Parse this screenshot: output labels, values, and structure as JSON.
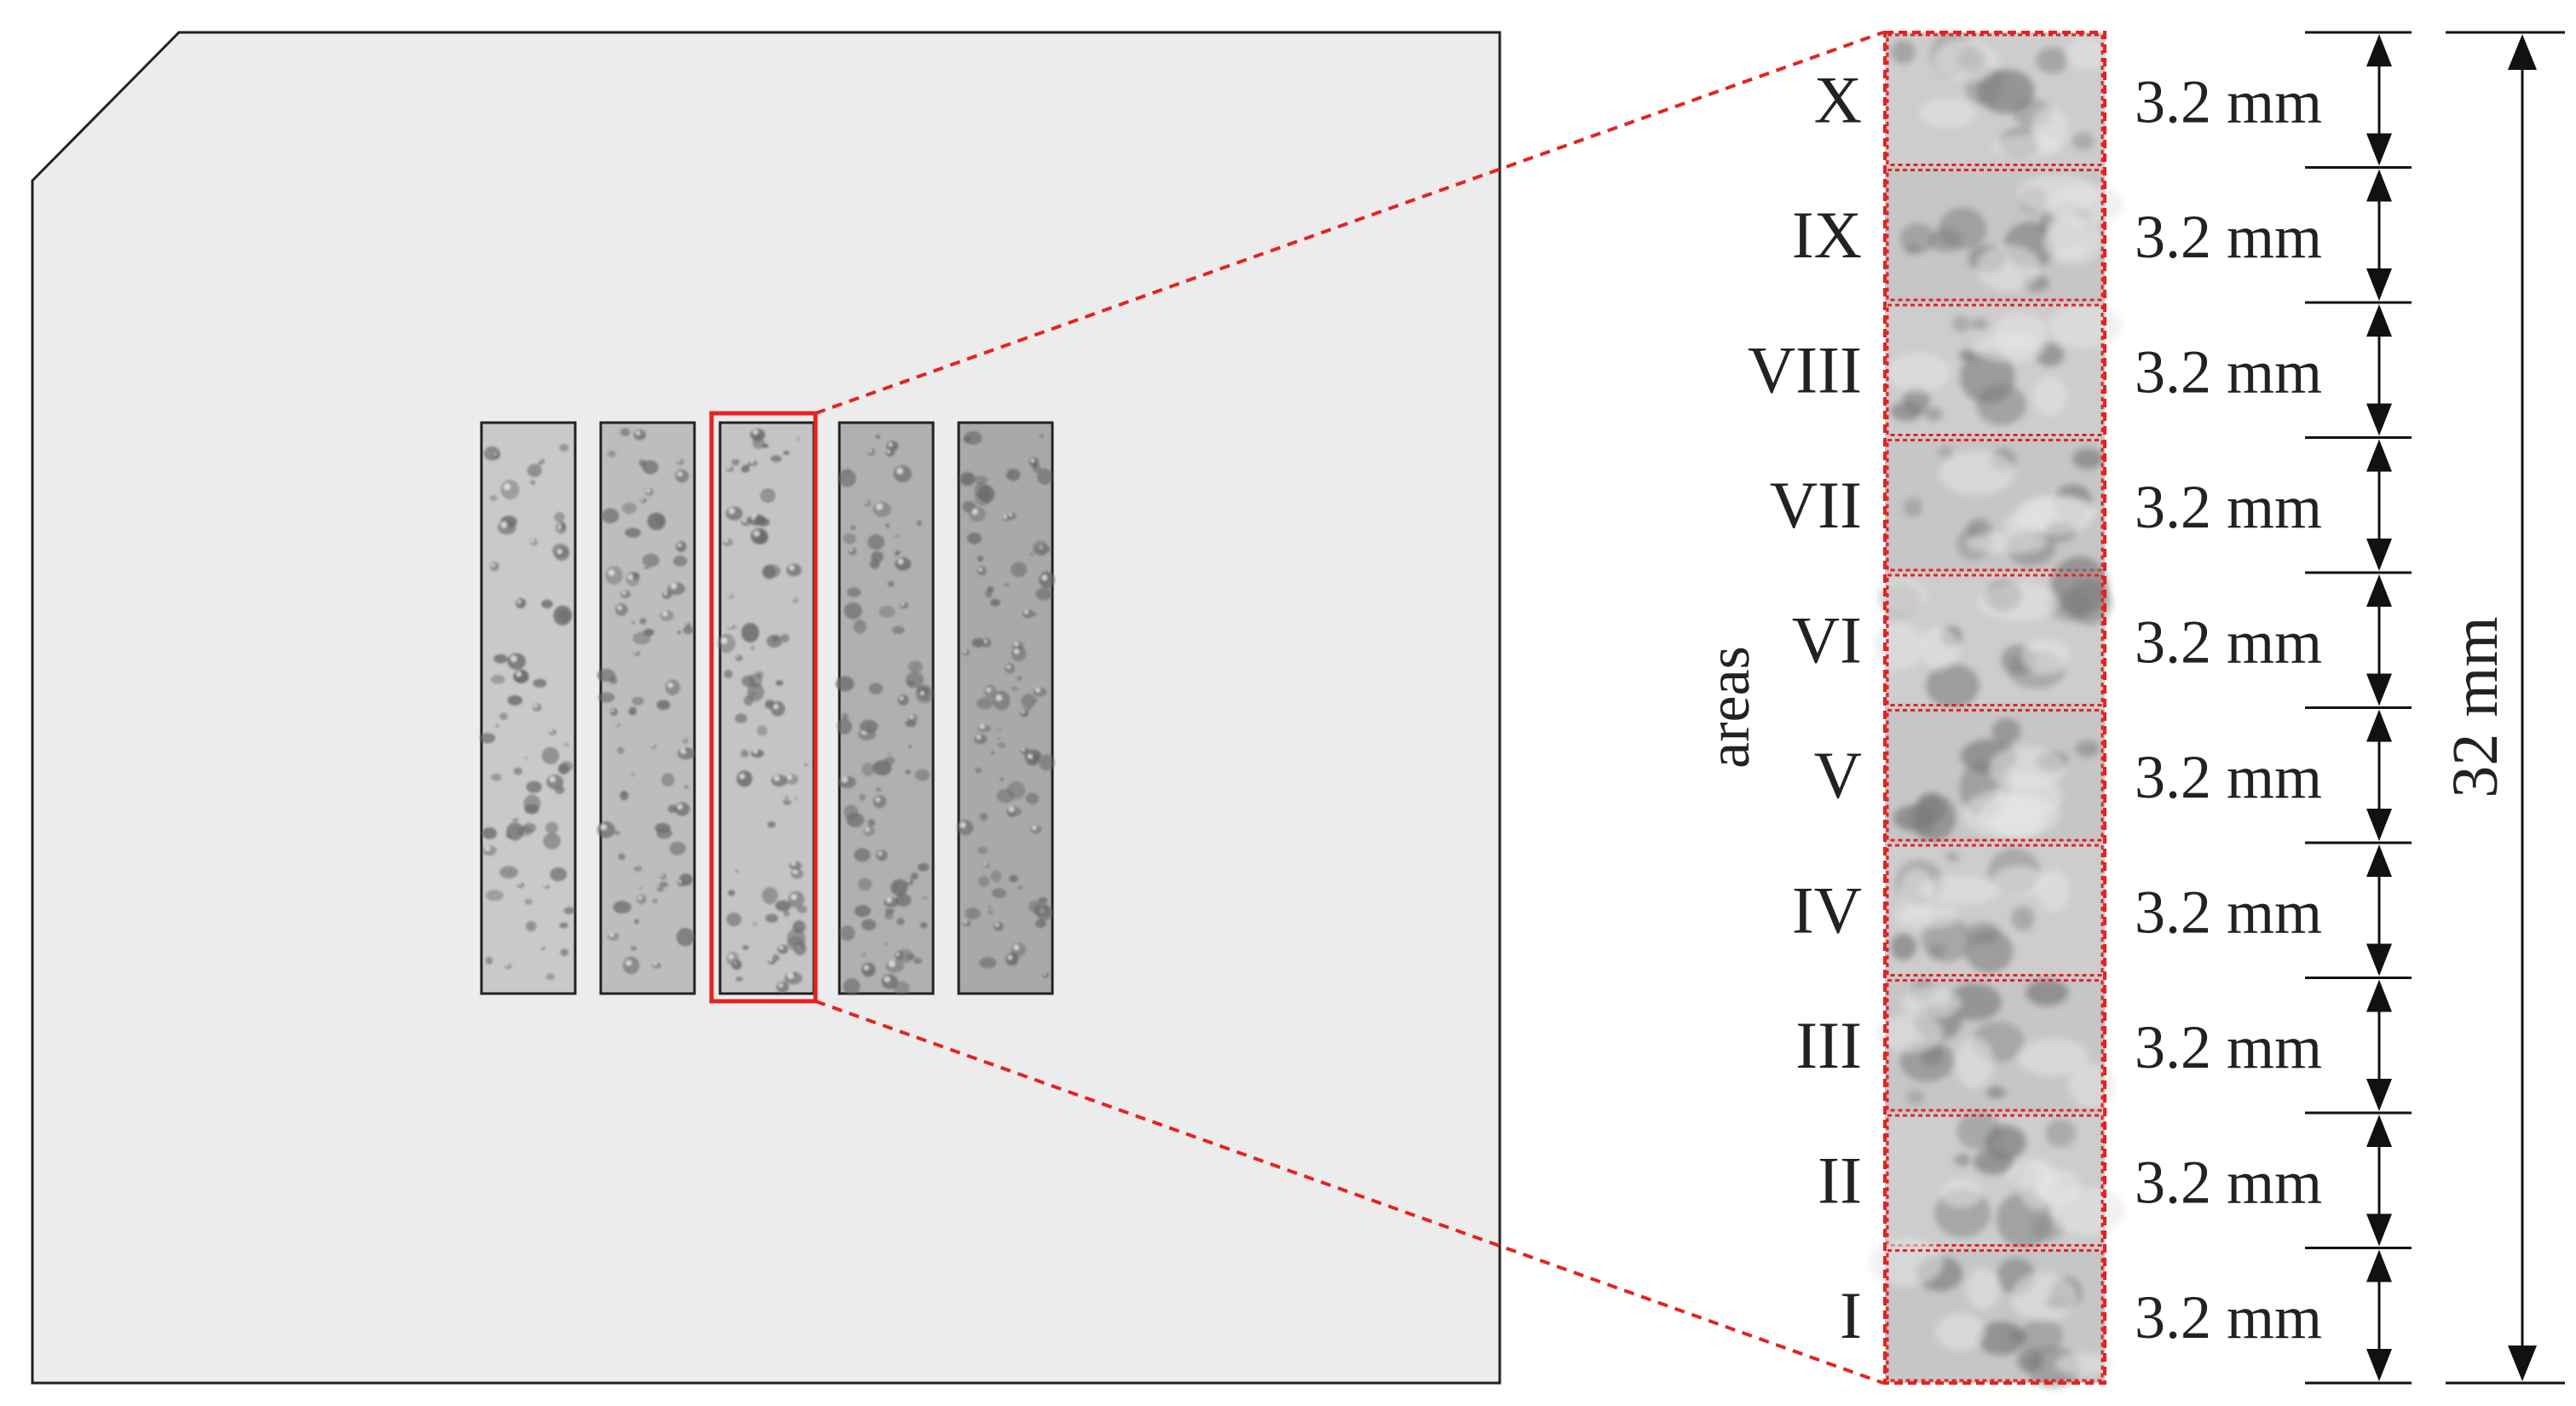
{
  "area_axis_label": "areas",
  "total_length_label": "32 mm",
  "areas": [
    {
      "roman": "X",
      "size_label": "3.2 mm"
    },
    {
      "roman": "IX",
      "size_label": "3.2 mm"
    },
    {
      "roman": "VIII",
      "size_label": "3.2 mm"
    },
    {
      "roman": "VII",
      "size_label": "3.2 mm"
    },
    {
      "roman": "VI",
      "size_label": "3.2 mm"
    },
    {
      "roman": "V",
      "size_label": "3.2 mm"
    },
    {
      "roman": "IV",
      "size_label": "3.2 mm"
    },
    {
      "roman": "III",
      "size_label": "3.2 mm"
    },
    {
      "roman": "II",
      "size_label": "3.2 mm"
    },
    {
      "roman": "I",
      "size_label": "3.2 mm"
    }
  ],
  "sample_strip_count": 5,
  "highlighted_strip": 3,
  "colors": {
    "plate_fill": "#ececec",
    "plate_stroke": "#222222",
    "highlight": "#e52222",
    "strip_shades": [
      "#c9c9c9",
      "#bdbdbd",
      "#c4c4c4",
      "#b0b0b0",
      "#a9a9a9"
    ],
    "pore": "#6b6b6b",
    "arrow": "#111111"
  }
}
